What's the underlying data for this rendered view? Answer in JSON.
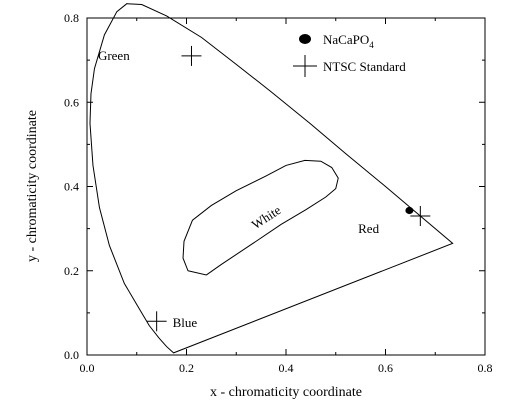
{
  "chart_data": {
    "type": "scatter",
    "title": "",
    "xlabel": "x - chromaticity coordinate",
    "ylabel": "y - chromaticity coordinate",
    "xlim": [
      0.0,
      0.8
    ],
    "ylim": [
      0.0,
      0.8
    ],
    "xticks": [
      "0.0",
      "0.2",
      "0.4",
      "0.6",
      "0.8"
    ],
    "yticks": [
      "0.0",
      "0.2",
      "0.4",
      "0.6",
      "0.8"
    ],
    "xtick_values": [
      0.0,
      0.2,
      0.4,
      0.6,
      0.8
    ],
    "ytick_values": [
      0.0,
      0.2,
      0.4,
      0.6,
      0.8
    ],
    "grid": false,
    "legend_position": "top-right",
    "legend": {
      "sample_main": "NaCaPO",
      "sample_sub": "4",
      "standard": "NTSC Standard"
    },
    "spectral_locus": [
      [
        0.174,
        0.005
      ],
      [
        0.16,
        0.02
      ],
      [
        0.145,
        0.04
      ],
      [
        0.125,
        0.07
      ],
      [
        0.1,
        0.12
      ],
      [
        0.075,
        0.17
      ],
      [
        0.045,
        0.26
      ],
      [
        0.025,
        0.35
      ],
      [
        0.012,
        0.45
      ],
      [
        0.006,
        0.55
      ],
      [
        0.008,
        0.62
      ],
      [
        0.015,
        0.68
      ],
      [
        0.035,
        0.76
      ],
      [
        0.06,
        0.815
      ],
      [
        0.08,
        0.834
      ],
      [
        0.11,
        0.832
      ],
      [
        0.16,
        0.805
      ],
      [
        0.23,
        0.754
      ],
      [
        0.3,
        0.69
      ],
      [
        0.37,
        0.625
      ],
      [
        0.45,
        0.548
      ],
      [
        0.52,
        0.478
      ],
      [
        0.6,
        0.4
      ],
      [
        0.67,
        0.33
      ],
      [
        0.735,
        0.265
      ]
    ],
    "white_region": [
      [
        0.203,
        0.2
      ],
      [
        0.24,
        0.19
      ],
      [
        0.27,
        0.215
      ],
      [
        0.34,
        0.27
      ],
      [
        0.39,
        0.31
      ],
      [
        0.44,
        0.345
      ],
      [
        0.48,
        0.375
      ],
      [
        0.5,
        0.395
      ],
      [
        0.505,
        0.42
      ],
      [
        0.492,
        0.445
      ],
      [
        0.47,
        0.46
      ],
      [
        0.438,
        0.462
      ],
      [
        0.4,
        0.45
      ],
      [
        0.36,
        0.425
      ],
      [
        0.3,
        0.39
      ],
      [
        0.25,
        0.355
      ],
      [
        0.212,
        0.32
      ],
      [
        0.195,
        0.27
      ],
      [
        0.193,
        0.23
      ]
    ],
    "sample_point": {
      "x": 0.648,
      "y": 0.343
    },
    "ntsc_standard": [
      {
        "label": "Green",
        "x": 0.21,
        "y": 0.71
      },
      {
        "label": "Red",
        "x": 0.67,
        "y": 0.33
      },
      {
        "label": "Blue",
        "x": 0.14,
        "y": 0.08
      }
    ],
    "annotations": [
      {
        "text": "Green",
        "x": 0.022,
        "y": 0.7
      },
      {
        "text": "White",
        "x": 0.365,
        "y": 0.318,
        "rotate": -33
      },
      {
        "text": "Red",
        "x": 0.545,
        "y": 0.29
      },
      {
        "text": "Blue",
        "x": 0.172,
        "y": 0.067
      }
    ]
  }
}
